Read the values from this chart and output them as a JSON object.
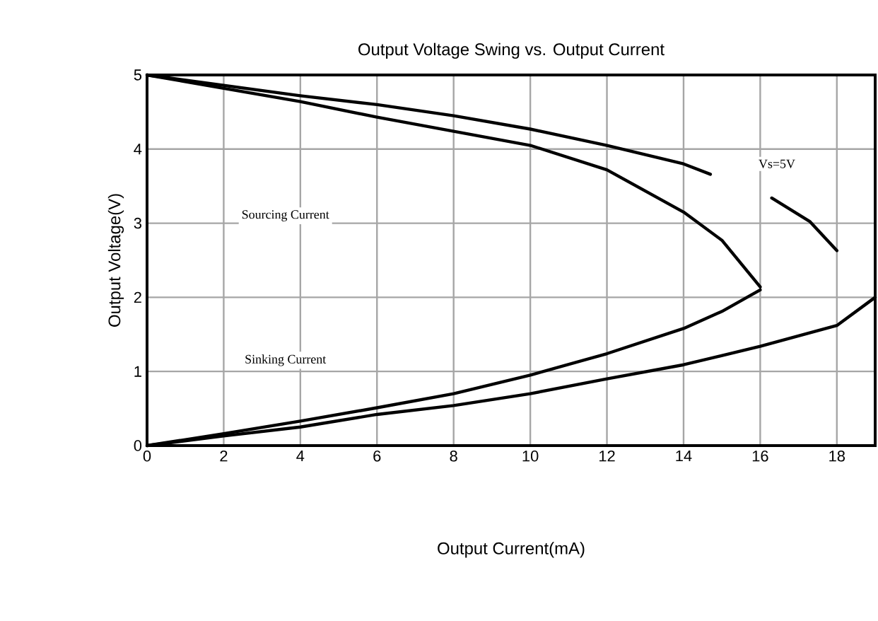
{
  "chart_data": {
    "type": "line",
    "title": "Output Voltage Swing vs. Output Current",
    "xlabel": "Output Current(mA)",
    "ylabel": "Output Voltage(V)",
    "xlim": [
      0,
      19
    ],
    "ylim": [
      0,
      5
    ],
    "xticks": [
      0,
      2,
      4,
      6,
      8,
      10,
      12,
      14,
      16,
      18
    ],
    "yticks": [
      0,
      1,
      2,
      3,
      4,
      5
    ],
    "grid": true,
    "marker": "none",
    "line_style": "solid",
    "series": [
      {
        "color": "#000000",
        "x": [
          0,
          2,
          4,
          6,
          8,
          10,
          12,
          14,
          14.7,
          15.5,
          16.3,
          17.3,
          18
        ],
        "values": [
          5,
          4.86,
          4.72,
          4.6,
          4.45,
          4.27,
          4.05,
          3.8,
          3.66,
          null,
          3.34,
          3.02,
          2.63
        ]
      },
      {
        "color": "#000000",
        "x": [
          0,
          2,
          4,
          6,
          8,
          10,
          12,
          14,
          15,
          16
        ],
        "values": [
          5,
          4.82,
          4.64,
          4.43,
          4.24,
          4.05,
          3.72,
          3.15,
          2.77,
          2.14
        ]
      },
      {
        "color": "#000000",
        "x": [
          0,
          2,
          4,
          6,
          8,
          10,
          12,
          14,
          15,
          16
        ],
        "values": [
          0,
          0.16,
          0.33,
          0.51,
          0.7,
          0.95,
          1.24,
          1.58,
          1.81,
          2.1
        ]
      },
      {
        "color": "#000000",
        "x": [
          0,
          2,
          4,
          6,
          8,
          10,
          12,
          14,
          16,
          18,
          19
        ],
        "values": [
          0,
          0.13,
          0.25,
          0.42,
          0.54,
          0.7,
          0.9,
          1.09,
          1.34,
          1.62,
          2.0
        ]
      }
    ],
    "annotations": [
      "Sourcing Current",
      "Sinking Current",
      "Vs=5V"
    ]
  }
}
